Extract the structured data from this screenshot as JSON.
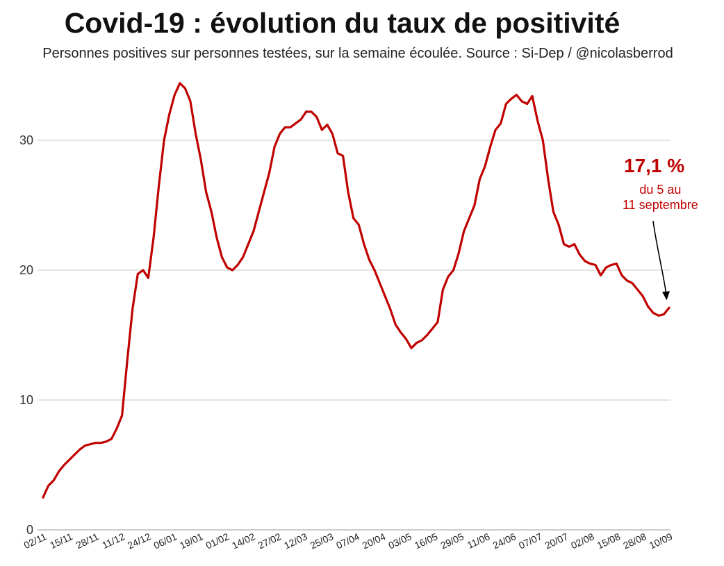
{
  "title": "Covid-19 : évolution du taux de positivité",
  "subtitle": "Personnes positives sur personnes testées, sur la semaine écoulée. Source : Si-Dep / @nicolasberrod",
  "annotation": {
    "value": "17,1 %",
    "period": "du 5 au\n11 septembre"
  },
  "colors": {
    "line": "#c00000",
    "annotation": "#c00000",
    "grid": "#c8c8c8",
    "arrow": "#000000"
  },
  "chart_data": {
    "type": "line",
    "title": "Covid-19 : évolution du taux de positivité",
    "xlabel": "",
    "ylabel": "",
    "ylim": [
      0,
      35
    ],
    "grid": true,
    "yticks": [
      0,
      10,
      20,
      30
    ],
    "xtick_labels": [
      "02/11",
      "15/11",
      "28/11",
      "11/12",
      "24/12",
      "06/01",
      "19/01",
      "01/02",
      "14/02",
      "27/02",
      "12/03",
      "25/03",
      "07/04",
      "20/04",
      "03/05",
      "16/05",
      "29/05",
      "11/06",
      "24/06",
      "07/07",
      "20/07",
      "02/08",
      "15/08",
      "28/08",
      "10/09"
    ],
    "series": [
      {
        "values": [
          2.5,
          3.4,
          3.8,
          4.5,
          5.0,
          5.4,
          5.8,
          6.2,
          6.5,
          6.6,
          6.7,
          6.7,
          6.8,
          7.0,
          7.8,
          8.8,
          13.0,
          17.0,
          19.7,
          20.0,
          19.4,
          22.5,
          26.5,
          30.0,
          32.0,
          33.5,
          34.4,
          34.0,
          33.0,
          30.5,
          28.5,
          26.0,
          24.5,
          22.5,
          21.0,
          20.2,
          20.0,
          20.4,
          21.0,
          22.0,
          23.0,
          24.5,
          26.0,
          27.5,
          29.5,
          30.5,
          31.0,
          31.0,
          31.3,
          31.6,
          32.2,
          32.2,
          31.8,
          30.8,
          31.2,
          30.5,
          29.0,
          28.8,
          26.0,
          24.0,
          23.5,
          22.0,
          20.8,
          20.0,
          19.0,
          18.0,
          17.0,
          15.8,
          15.2,
          14.7,
          14.0,
          14.4,
          14.6,
          15.0,
          15.5,
          16.0,
          18.5,
          19.5,
          20.0,
          21.3,
          23.0,
          24.0,
          25.0,
          27.0,
          28.0,
          29.5,
          30.8,
          31.3,
          32.8,
          33.2,
          33.5,
          33.0,
          32.8,
          33.4,
          31.5,
          30.0,
          27.0,
          24.5,
          23.5,
          22.0,
          21.8,
          22.0,
          21.2,
          20.7,
          20.5,
          20.4,
          19.6,
          20.2,
          20.4,
          20.5,
          19.6,
          19.2,
          19.0,
          18.5,
          18.0,
          17.2,
          16.7,
          16.5,
          16.6,
          17.1
        ]
      }
    ],
    "last_value": 17.1
  }
}
